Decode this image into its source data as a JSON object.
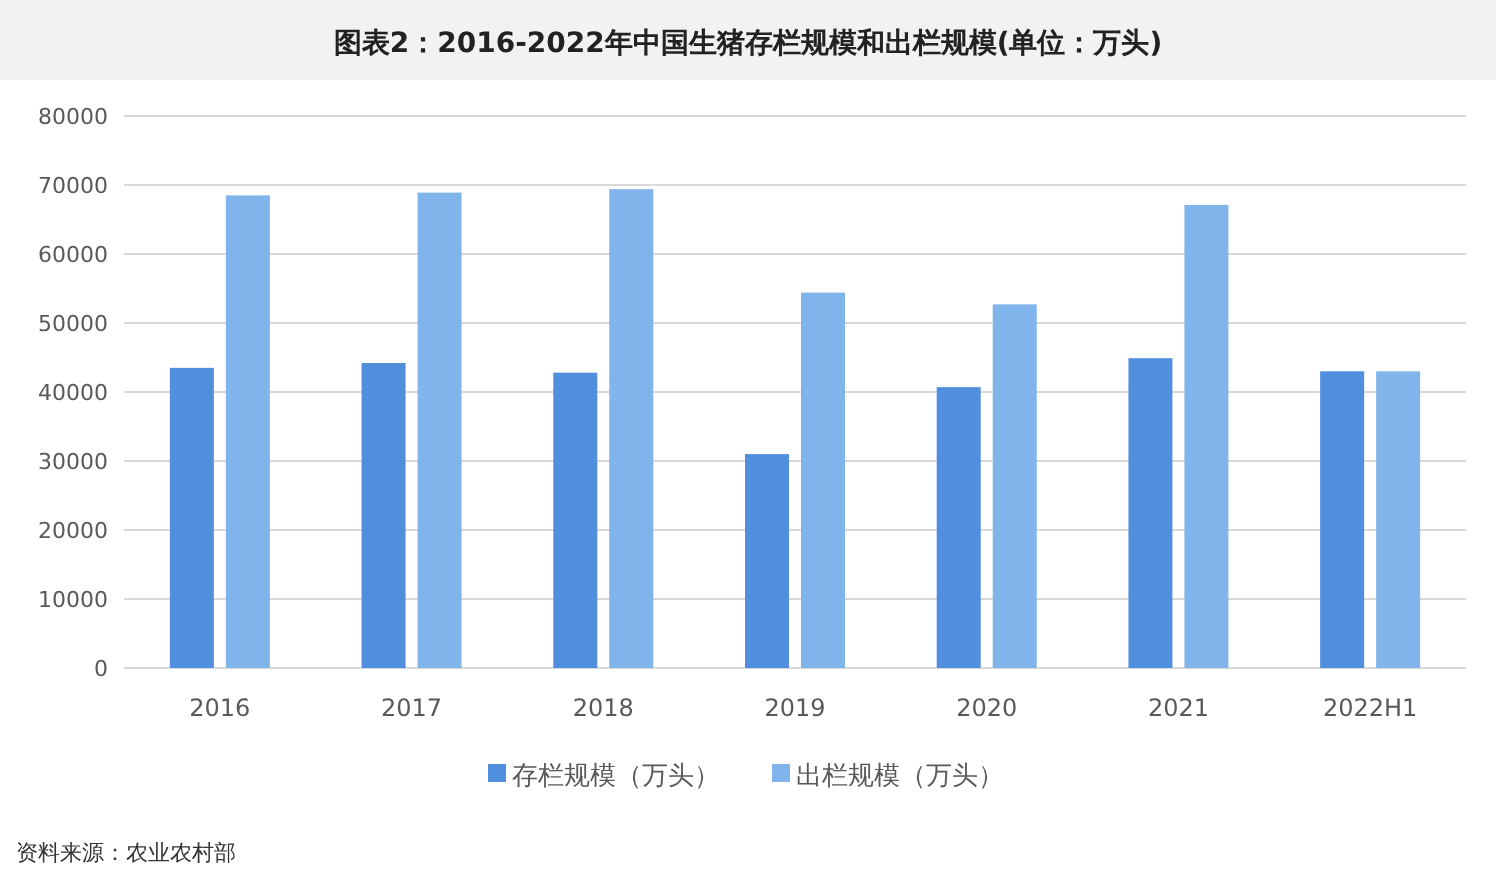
{
  "chart_data": {
    "type": "bar",
    "title": "图表2：2016-2022年中国生猪存栏规模和出栏规模(单位：万头)",
    "categories": [
      "2016",
      "2017",
      "2018",
      "2019",
      "2020",
      "2021",
      "2022H1"
    ],
    "series": [
      {
        "name": "存栏规模（万头）",
        "color": "#4f8fde",
        "values": [
          43500,
          44200,
          42800,
          31000,
          40700,
          44900,
          43000
        ]
      },
      {
        "name": "出栏规模（万头）",
        "color": "#80b4ea",
        "values": [
          68500,
          68900,
          69400,
          54400,
          52700,
          67100,
          43000
        ]
      }
    ],
    "ylim": [
      0,
      80000
    ],
    "yticks": [
      0,
      10000,
      20000,
      30000,
      40000,
      50000,
      60000,
      70000,
      80000
    ],
    "grid": "y",
    "legend": "bottom",
    "annotations": [
      "资料来源：农业农村部"
    ]
  }
}
